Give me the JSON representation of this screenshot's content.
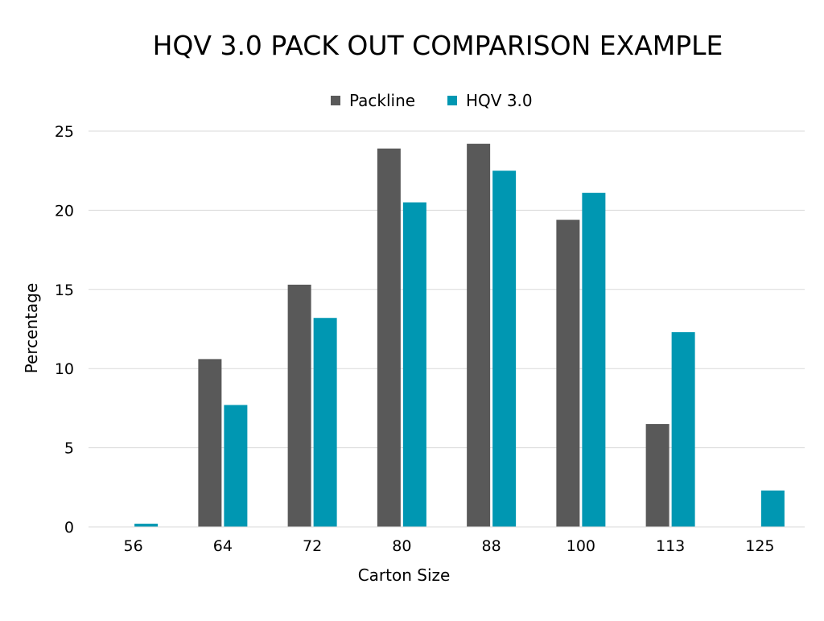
{
  "chart_data": {
    "type": "bar",
    "title": "HQV 3.0 PACK OUT COMPARISON EXAMPLE",
    "xlabel": "Carton Size",
    "ylabel": "Percentage",
    "categories": [
      "56",
      "64",
      "72",
      "80",
      "88",
      "100",
      "113",
      "125"
    ],
    "series": [
      {
        "name": "Packline",
        "color": "#595959",
        "values": [
          0,
          10.6,
          15.3,
          23.9,
          24.2,
          19.4,
          6.5,
          0
        ]
      },
      {
        "name": "HQV 3.0",
        "color": "#0097B2",
        "values": [
          0.2,
          7.7,
          13.2,
          20.5,
          22.5,
          21.1,
          12.3,
          2.3
        ]
      }
    ],
    "ylim": [
      0,
      25
    ],
    "yticks": [
      0,
      5,
      10,
      15,
      20,
      25
    ],
    "grid": true,
    "legend_position": "top-center"
  }
}
